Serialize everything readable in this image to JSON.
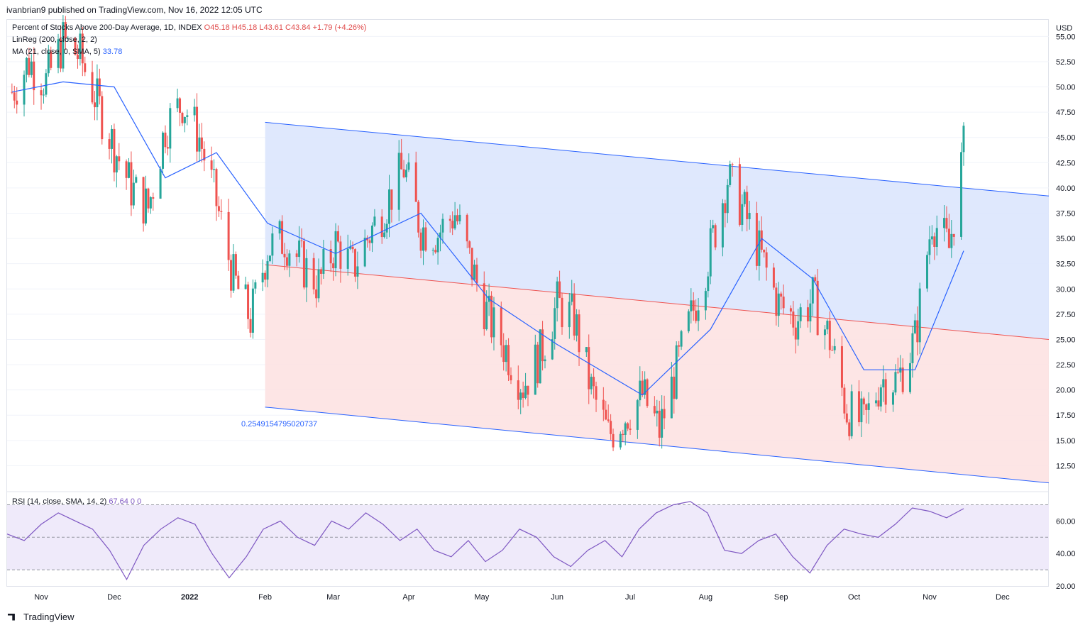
{
  "publisher": "ivanbrian9 published on TradingView.com, Nov 16, 2022 12:05 UTC",
  "legend": {
    "title": "Percent of Stocks Above 200-Day Average, 1D, INDEX",
    "ohlc": "O45.18  H45.18  L43.61  C43.84  +1.79 (+4.26%)",
    "linreg": "LinReg (200, close, 2, 2)",
    "ma": "MA (21, close, 0, SMA, 5)",
    "ma_value": "33.78",
    "rsi": "RSI (14, close, SMA, 14, 2)",
    "rsi_value": "67.64  0  0"
  },
  "regression_label": "0.2549154795020737",
  "footer": "TradingView",
  "colors": {
    "up": "#26a69a",
    "down": "#ef5350",
    "ma": "#2962ff",
    "channel_upper_fill": "#dbe5fd",
    "channel_lower_fill": "#fde2e2",
    "rsi_line": "#7e57c2",
    "rsi_band": "#efeafa"
  },
  "chart_data": [
    {
      "type": "line",
      "title": "Percent of Stocks Above 200-Day Average, 1D, INDEX",
      "currency": "USD",
      "ylim": [
        10,
        56.5
      ],
      "y_ticks": [
        "55.00",
        "52.50",
        "50.00",
        "47.50",
        "45.00",
        "42.50",
        "40.00",
        "37.50",
        "35.00",
        "32.50",
        "30.00",
        "27.50",
        "25.00",
        "22.50",
        "20.00",
        "17.50",
        "15.00",
        "12.50"
      ],
      "x_ticks": [
        "Nov",
        "Dec",
        "2022",
        "Feb",
        "Mar",
        "Apr",
        "May",
        "Jun",
        "Jul",
        "Aug",
        "Sep",
        "Oct",
        "Nov",
        "Dec"
      ],
      "series": [
        {
          "name": "Close",
          "x": [
            "2021-10-20",
            "2021-10-27",
            "2021-11-03",
            "2021-11-10",
            "2021-11-17",
            "2021-11-24",
            "2021-12-01",
            "2021-12-08",
            "2021-12-15",
            "2021-12-22",
            "2021-12-29",
            "2022-01-05",
            "2022-01-12",
            "2022-01-19",
            "2022-01-26",
            "2022-02-02",
            "2022-02-09",
            "2022-02-16",
            "2022-02-23",
            "2022-03-02",
            "2022-03-09",
            "2022-03-16",
            "2022-03-23",
            "2022-03-30",
            "2022-04-06",
            "2022-04-13",
            "2022-04-20",
            "2022-04-27",
            "2022-05-04",
            "2022-05-11",
            "2022-05-18",
            "2022-05-25",
            "2022-06-01",
            "2022-06-08",
            "2022-06-15",
            "2022-06-22",
            "2022-06-29",
            "2022-07-06",
            "2022-07-13",
            "2022-07-20",
            "2022-07-27",
            "2022-08-03",
            "2022-08-10",
            "2022-08-17",
            "2022-08-24",
            "2022-08-31",
            "2022-09-07",
            "2022-09-14",
            "2022-09-21",
            "2022-09-28",
            "2022-10-05",
            "2022-10-12",
            "2022-10-19",
            "2022-10-26",
            "2022-11-02",
            "2022-11-09",
            "2022-11-15"
          ],
          "values": [
            49.5,
            52.5,
            50.5,
            54.5,
            53.0,
            48.5,
            44.0,
            40.0,
            38.0,
            46.0,
            48.5,
            45.0,
            38.5,
            31.0,
            27.0,
            34.0,
            35.0,
            32.5,
            30.5,
            34.5,
            32.0,
            35.5,
            38.5,
            42.0,
            36.0,
            35.5,
            37.5,
            32.0,
            27.0,
            24.0,
            20.5,
            23.5,
            28.5,
            27.0,
            20.0,
            15.5,
            17.5,
            19.5,
            16.0,
            22.0,
            28.0,
            34.0,
            41.0,
            37.5,
            33.0,
            28.5,
            27.0,
            29.0,
            25.0,
            18.0,
            16.5,
            21.0,
            21.0,
            25.0,
            37.0,
            34.0,
            43.84
          ]
        },
        {
          "name": "MA (21, close, 0, SMA, 5)",
          "x": [
            "2021-10-20",
            "2021-11-10",
            "2021-12-01",
            "2021-12-22",
            "2022-01-12",
            "2022-02-02",
            "2022-03-02",
            "2022-04-06",
            "2022-05-04",
            "2022-06-01",
            "2022-07-06",
            "2022-08-03",
            "2022-08-24",
            "2022-09-14",
            "2022-10-05",
            "2022-10-26",
            "2022-11-15"
          ],
          "values": [
            49.5,
            50.5,
            50.0,
            41.0,
            43.5,
            36.5,
            33.5,
            37.5,
            29.0,
            24.5,
            19.5,
            26.0,
            35.0,
            31.0,
            22.0,
            22.0,
            33.78
          ]
        }
      ]
    },
    {
      "type": "line",
      "title": "RSI (14, close, SMA, 14, 2)",
      "ylim": [
        20,
        75
      ],
      "y_ticks": [
        "60.00",
        "40.00",
        "20.00"
      ],
      "series": [
        {
          "name": "RSI",
          "values": [
            52,
            48,
            58,
            65,
            60,
            55,
            42,
            24,
            45,
            55,
            62,
            58,
            40,
            25,
            38,
            55,
            60,
            50,
            45,
            60,
            55,
            65,
            58,
            48,
            55,
            42,
            38,
            48,
            35,
            42,
            55,
            50,
            38,
            32,
            42,
            48,
            38,
            55,
            65,
            70,
            72,
            65,
            42,
            40,
            48,
            52,
            38,
            28,
            45,
            55,
            52,
            50,
            58,
            68,
            66,
            62,
            67.64
          ]
        }
      ]
    }
  ]
}
